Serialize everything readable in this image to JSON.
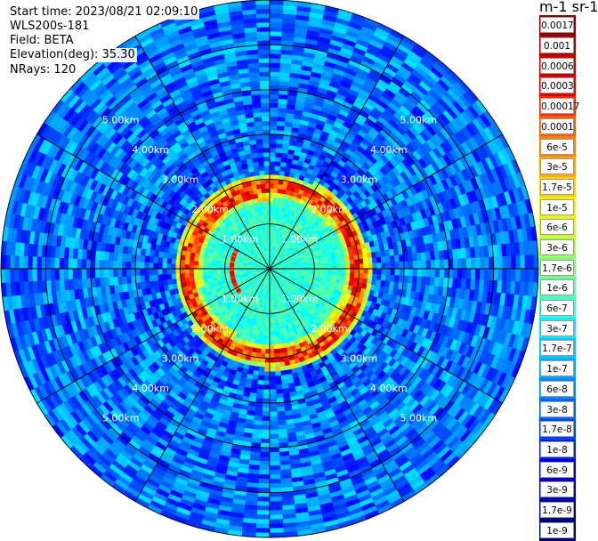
{
  "header": {
    "start_time": "Start time: 2023/08/21 02:09:10",
    "instrument": "WLS200s-181",
    "field": "Field: BETA",
    "elevation": "Elevation(deg): 35.30",
    "nrays": "NRays: 120"
  },
  "colorbar": {
    "unit": "m-1 sr-1",
    "labels": [
      "0.0017",
      "0.001",
      "0.0006",
      "0.0003",
      "0.00017",
      "0.0001",
      "6e-5",
      "3e-5",
      "1.7e-5",
      "1e-5",
      "6e-6",
      "3e-6",
      "1.7e-6",
      "1e-6",
      "6e-7",
      "3e-7",
      "1.7e-7",
      "1e-7",
      "6e-8",
      "3e-8",
      "1.7e-8",
      "1e-8",
      "6e-9",
      "3e-9",
      "1.7e-9",
      "1e-9"
    ],
    "colors": [
      "#8b0000",
      "#aa0000",
      "#c80000",
      "#e00000",
      "#ff2a00",
      "#ff5a00",
      "#ff8200",
      "#ffa800",
      "#ffd000",
      "#f5ee00",
      "#d8ff1e",
      "#a8ff50",
      "#80ff7c",
      "#5affa8",
      "#3cffd8",
      "#14e8ff",
      "#00c8ff",
      "#00a8ff",
      "#0088ff",
      "#0064ff",
      "#0040ff",
      "#0020f0",
      "#0000d8",
      "#0000b4",
      "#000090",
      "#00006e"
    ]
  },
  "chart_data": {
    "type": "heatmap",
    "projection": "polar-ppi",
    "field": "BETA",
    "elevation_deg": 35.3,
    "n_rays": 120,
    "range_rings_km": [
      1.0,
      2.0,
      3.0,
      4.0,
      5.0
    ],
    "range_ring_labels": [
      "1.00km",
      "2.00km",
      "3.00km",
      "4.00km",
      "5.00km"
    ],
    "max_range_km": 6.0,
    "azimuth_lines_deg": [
      0,
      30,
      60,
      90,
      120,
      150,
      180,
      210,
      240,
      270,
      300,
      330
    ],
    "features": {
      "background_log10_beta": -7.2,
      "near_field_core_log10_beta": -6.5,
      "ring_enhanced_backscatter": {
        "range_km": [
          1.75,
          2.05
        ],
        "peak": "~1e-4"
      }
    }
  }
}
